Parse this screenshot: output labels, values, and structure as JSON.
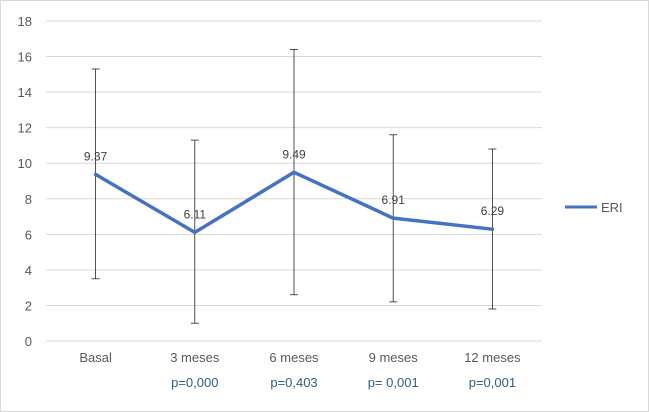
{
  "chart_data": {
    "type": "line",
    "categories": [
      "Basal",
      "3 meses",
      "6 meses",
      "9 meses",
      "12 meses"
    ],
    "p_values": [
      "",
      "p=0,000",
      "p=0,403",
      "p= 0,001",
      "p=0,001"
    ],
    "series": [
      {
        "name": "ERI",
        "values": [
          9.37,
          6.11,
          9.49,
          6.91,
          6.29
        ],
        "data_labels": [
          "9.37",
          "6.11",
          "9.49",
          "6.91",
          "6.29"
        ],
        "error_high": [
          15.3,
          11.3,
          16.4,
          11.6,
          10.8
        ],
        "error_low": [
          3.5,
          1.0,
          2.6,
          2.2,
          1.8
        ],
        "color": "#4472c4"
      }
    ],
    "ylim": [
      0,
      18
    ],
    "yticks": [
      "0",
      "2",
      "4",
      "6",
      "8",
      "10",
      "12",
      "14",
      "16",
      "18"
    ],
    "grid": true,
    "legend_position": "right"
  }
}
